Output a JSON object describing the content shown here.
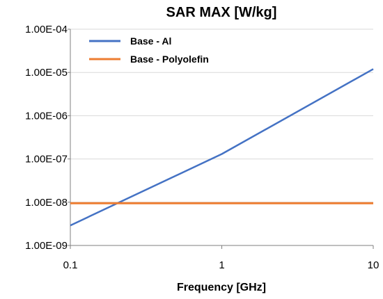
{
  "chart_data": {
    "type": "line",
    "title": "SAR MAX [W/kg]",
    "xlabel": "Frequency [GHz]",
    "ylabel": "",
    "x_scale": "log",
    "y_scale": "log",
    "xlim": [
      0.1,
      10
    ],
    "ylim": [
      1e-09,
      0.0001
    ],
    "x_ticks": [
      0.1,
      1,
      10
    ],
    "x_tick_labels": [
      "0.1",
      "1",
      "10"
    ],
    "y_ticks": [
      0.0001,
      1e-05,
      1e-06,
      1e-07,
      1e-08,
      1e-09
    ],
    "y_tick_labels": [
      "1.00E-04",
      "1.00E-05",
      "1.00E-06",
      "1.00E-07",
      "1.00E-08",
      "1.00E-09"
    ],
    "grid": "horizontal",
    "legend_position": "top-left",
    "series": [
      {
        "name": "Base - Al",
        "color": "#4472C4",
        "x": [
          0.1,
          1,
          10
        ],
        "y": [
          2.9e-09,
          1.3e-07,
          1.2e-05
        ]
      },
      {
        "name": "Base - Polyolefin",
        "color": "#ED7D31",
        "x": [
          0.1,
          10
        ],
        "y": [
          9.5e-09,
          9.5e-09
        ]
      }
    ]
  }
}
